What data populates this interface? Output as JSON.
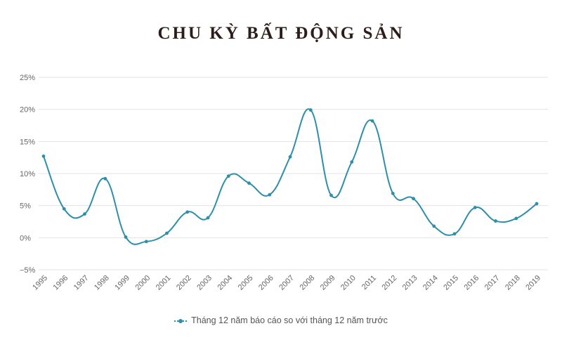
{
  "title": "CHU KỲ BẤT ĐỘNG SẢN",
  "chart_data": {
    "type": "line",
    "title": "CHU KỲ BẤT ĐỘNG SẢN",
    "xlabel": "",
    "ylabel": "",
    "ylim": [
      -5,
      25
    ],
    "yticks": [
      "25%",
      "20%",
      "15%",
      "10%",
      "5%",
      "0%",
      "−5%"
    ],
    "ytick_values": [
      25,
      20,
      15,
      10,
      5,
      0,
      -5
    ],
    "categories": [
      "1995",
      "1996",
      "1997",
      "1998",
      "1999",
      "2000",
      "2001",
      "2002",
      "2003",
      "2004",
      "2005",
      "2006",
      "2007",
      "2008",
      "2009",
      "2010",
      "2011",
      "2012",
      "2013",
      "2014",
      "2015",
      "2016",
      "2017",
      "2018",
      "2019"
    ],
    "series": [
      {
        "name": "Tháng 12 năm báo cáo so với tháng 12 năm trước",
        "color": "#2d8fa8",
        "values": [
          12.7,
          4.5,
          3.7,
          9.2,
          0.1,
          -0.6,
          0.7,
          4.0,
          3.1,
          9.6,
          8.5,
          6.7,
          12.6,
          19.9,
          6.6,
          11.8,
          18.2,
          6.9,
          6.1,
          1.8,
          0.6,
          4.7,
          2.6,
          3.0,
          5.3
        ]
      }
    ],
    "grid": true,
    "legend_position": "bottom-center"
  }
}
